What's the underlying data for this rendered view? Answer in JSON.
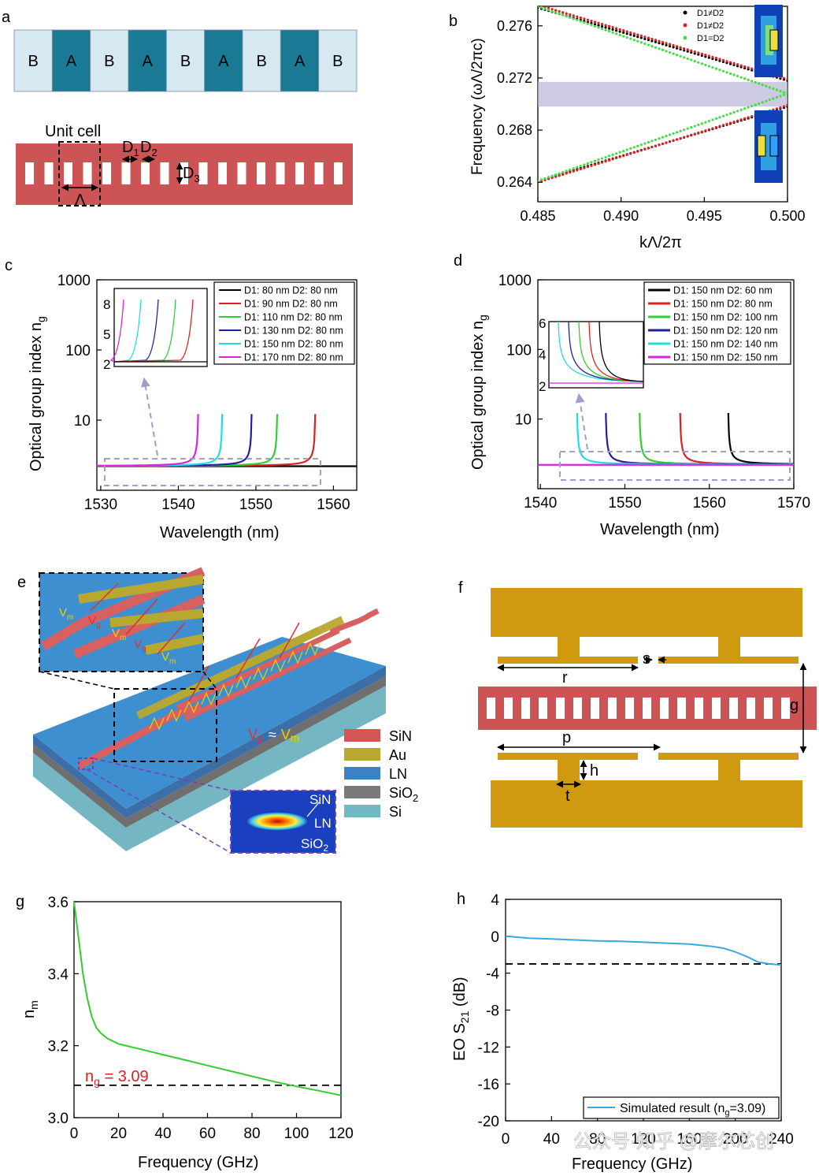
{
  "panels": {
    "a": {
      "label": "a",
      "segments": [
        "B",
        "A",
        "B",
        "A",
        "B",
        "A",
        "B",
        "A",
        "B"
      ],
      "unit_cell_label": "Unit cell",
      "dims": {
        "d1": "D",
        "d1_sub": "1",
        "d2": "D",
        "d2_sub": "2",
        "d3": "D",
        "d3_sub": "3",
        "lambda": "Λ"
      },
      "colors": {
        "A": "#1a7a96",
        "B": "#d6e8f2",
        "waveguide": "#cd5454"
      }
    },
    "b": {
      "label": "b",
      "xlabel": "kΛ/2π",
      "ylabel": "Frequency (ωΛ/2πc)",
      "xticks": [
        "0.485",
        "0.490",
        "0.495",
        "0.500"
      ],
      "yticks": [
        "0.264",
        "0.268",
        "0.272",
        "0.276"
      ],
      "legend": [
        "D1≠D2",
        "D1≠D2",
        "D1=D2"
      ],
      "colors": {
        "s1": "#000000",
        "s2": "#e02020",
        "s3": "#44dd44",
        "gap": "#b8b4d8"
      }
    },
    "c": {
      "label": "c",
      "xlabel": "Wavelength (nm)",
      "ylabel": "Optical group index n",
      "ylabel_sub": "g",
      "xticks": [
        "1530",
        "1540",
        "1550",
        "1560"
      ],
      "yticks": [
        "1000",
        "100",
        "10"
      ],
      "inset_yticks": [
        "8",
        "5",
        "2"
      ],
      "legend": [
        "D1: 80 nm D2: 80 nm",
        "D1: 90 nm D2: 80 nm",
        "D1: 110 nm D2: 80 nm",
        "D1: 130 nm D2: 80 nm",
        "D1: 150 nm D2: 80 nm",
        "D1: 170 nm D2: 80 nm"
      ],
      "colors": [
        "#000000",
        "#e02020",
        "#33cc33",
        "#2020a0",
        "#22dddd",
        "#dd22dd"
      ]
    },
    "d": {
      "label": "d",
      "xlabel": "Wavelength (nm)",
      "ylabel": "Optical group index n",
      "ylabel_sub": "g",
      "xticks": [
        "1540",
        "1550",
        "1560",
        "1570"
      ],
      "yticks": [
        "1000",
        "100",
        "10"
      ],
      "inset_yticks": [
        "6",
        "4",
        "2"
      ],
      "legend": [
        "D1: 150 nm  D2: 60 nm",
        "D1: 150 nm  D2: 80 nm",
        "D1: 150 nm  D2: 100 nm",
        "D1: 150 nm  D2: 120 nm",
        "D1: 150 nm  D2: 140 nm",
        "D1: 150 nm  D2: 150 nm"
      ],
      "colors": [
        "#000000",
        "#e02020",
        "#33cc33",
        "#2020a0",
        "#22dddd",
        "#dd22dd"
      ]
    },
    "e": {
      "label": "e",
      "legend": [
        "SiN",
        "Au",
        "LN",
        "SiO",
        "Si"
      ],
      "legend_sub": [
        "",
        "",
        "",
        "2",
        ""
      ],
      "legend_colors": [
        "#d55555",
        "#b8a830",
        "#3b82c4",
        "#7a7a7a",
        "#6fb8c4"
      ],
      "voltage_labels": [
        "V",
        "g",
        "V",
        "m"
      ],
      "approx_label": "≈",
      "inset_labels": [
        "V",
        "m",
        "V",
        "g",
        "V",
        "m",
        "V",
        "g",
        "V",
        "m"
      ],
      "mode_labels": [
        "SiN",
        "LN",
        "SiO",
        "2"
      ]
    },
    "f": {
      "label": "f",
      "dim_labels": [
        "s",
        "r",
        "g",
        "p",
        "h",
        "t"
      ],
      "colors": {
        "electrode": "#cf9a0f",
        "waveguide": "#cd5454"
      }
    },
    "g": {
      "label": "g",
      "xlabel": "Frequency (GHz)",
      "ylabel": "n",
      "ylabel_sub": "m",
      "xticks": [
        "0",
        "20",
        "40",
        "60",
        "80",
        "100",
        "120"
      ],
      "yticks": [
        "3.6",
        "3.4",
        "3.2",
        "3.0"
      ],
      "annotation": "n",
      "annotation_sub": "g",
      "annotation_value": " = 3.09",
      "color": "#33cc33"
    },
    "h": {
      "label": "h",
      "xlabel": "Frequency (GHz)",
      "ylabel": "EO S",
      "ylabel_sub": "21",
      "ylabel_unit": " (dB)",
      "xticks": [
        "0",
        "40",
        "80",
        "120",
        "160",
        "200",
        "240"
      ],
      "yticks": [
        "4",
        "0",
        "-4",
        "-8",
        "-12",
        "-16",
        "-20"
      ],
      "legend": "Simulated result (n",
      "legend_sub": "g",
      "legend_end": "=3.09)",
      "watermark": "公众号·知乎 @摩尔芯创",
      "color": "#3aa8dd"
    }
  },
  "chart_data": [
    {
      "type": "scatter",
      "title": "b",
      "xlabel": "kΛ/2π",
      "ylabel": "Frequency (ωΛ/2πc)",
      "xlim": [
        0.485,
        0.5
      ],
      "ylim": [
        0.2625,
        0.2775
      ],
      "band_gap": [
        0.2698,
        0.2717
      ],
      "series": [
        {
          "name": "D1≠D2",
          "x": [
            0.485,
            0.5
          ],
          "upper": [
            0.2774,
            0.2718
          ],
          "lower": [
            0.2641,
            0.2698
          ]
        },
        {
          "name": "D1≠D2",
          "x": [
            0.485,
            0.5
          ],
          "upper": [
            0.2776,
            0.2719
          ],
          "lower": [
            0.264,
            0.2699
          ]
        },
        {
          "name": "D1=D2",
          "x": [
            0.485,
            0.5
          ],
          "upper": [
            0.2775,
            0.2708
          ],
          "lower": [
            0.2641,
            0.2708
          ]
        }
      ]
    },
    {
      "type": "line",
      "title": "c",
      "xlabel": "Wavelength (nm)",
      "ylabel": "Optical group index ng",
      "xlim": [
        1529.5,
        1563
      ],
      "ylim": [
        1,
        1000
      ],
      "yscale": "log",
      "series": [
        {
          "name": "D1: 80 nm D2: 80 nm",
          "flat": 2.2,
          "divergence": null
        },
        {
          "name": "D1: 90 nm D2: 80 nm",
          "flat": 2.2,
          "divergence": 1557.7
        },
        {
          "name": "D1: 110 nm D2: 80 nm",
          "flat": 2.2,
          "divergence": 1552.8
        },
        {
          "name": "D1: 130 nm D2: 80 nm",
          "flat": 2.2,
          "divergence": 1549.5
        },
        {
          "name": "D1: 150 nm D2: 80 nm",
          "flat": 2.2,
          "divergence": 1545.7
        },
        {
          "name": "D1: 170 nm D2: 80 nm",
          "flat": 2.2,
          "divergence": 1542.6
        }
      ]
    },
    {
      "type": "line",
      "title": "d",
      "xlabel": "Wavelength (nm)",
      "ylabel": "Optical group index ng",
      "xlim": [
        1539.7,
        1570
      ],
      "ylim": [
        1,
        1000
      ],
      "yscale": "log",
      "series": [
        {
          "name": "D1: 150 nm  D2: 60 nm",
          "flat": 2.2,
          "divergence": 1562.2
        },
        {
          "name": "D1: 150 nm  D2: 80 nm",
          "flat": 2.2,
          "divergence": 1556.5
        },
        {
          "name": "D1: 150 nm  D2: 100 nm",
          "flat": 2.2,
          "divergence": 1551.7
        },
        {
          "name": "D1: 150 nm  D2: 120 nm",
          "flat": 2.2,
          "divergence": 1547.7
        },
        {
          "name": "D1: 150 nm  D2: 140 nm",
          "flat": 2.2,
          "divergence": 1544.3
        },
        {
          "name": "D1: 150 nm  D2: 150 nm",
          "flat": 2.2,
          "divergence": null
        }
      ]
    },
    {
      "type": "line",
      "title": "g",
      "xlabel": "Frequency (GHz)",
      "ylabel": "nm",
      "xlim": [
        0,
        120
      ],
      "ylim": [
        3.0,
        3.6
      ],
      "reference_line": 3.09,
      "x": [
        0,
        2,
        4,
        6,
        8,
        10,
        12,
        15,
        20,
        30,
        40,
        50,
        60,
        70,
        80,
        90,
        100,
        110,
        120
      ],
      "y": [
        3.6,
        3.5,
        3.4,
        3.33,
        3.28,
        3.25,
        3.235,
        3.22,
        3.205,
        3.19,
        3.175,
        3.16,
        3.145,
        3.13,
        3.115,
        3.1,
        3.087,
        3.075,
        3.062
      ]
    },
    {
      "type": "line",
      "title": "h",
      "xlabel": "Frequency (GHz)",
      "ylabel": "EO S21 (dB)",
      "xlim": [
        0,
        240
      ],
      "ylim": [
        -20,
        4
      ],
      "reference_line": -3,
      "legend": "Simulated result (ng=3.09)",
      "x": [
        0,
        20,
        40,
        60,
        80,
        100,
        120,
        140,
        160,
        180,
        190,
        200,
        210,
        220,
        230,
        240
      ],
      "y": [
        0,
        -0.2,
        -0.3,
        -0.4,
        -0.5,
        -0.55,
        -0.65,
        -0.75,
        -0.85,
        -1.1,
        -1.3,
        -1.7,
        -2.2,
        -2.8,
        -3.0,
        -3.1
      ]
    }
  ]
}
